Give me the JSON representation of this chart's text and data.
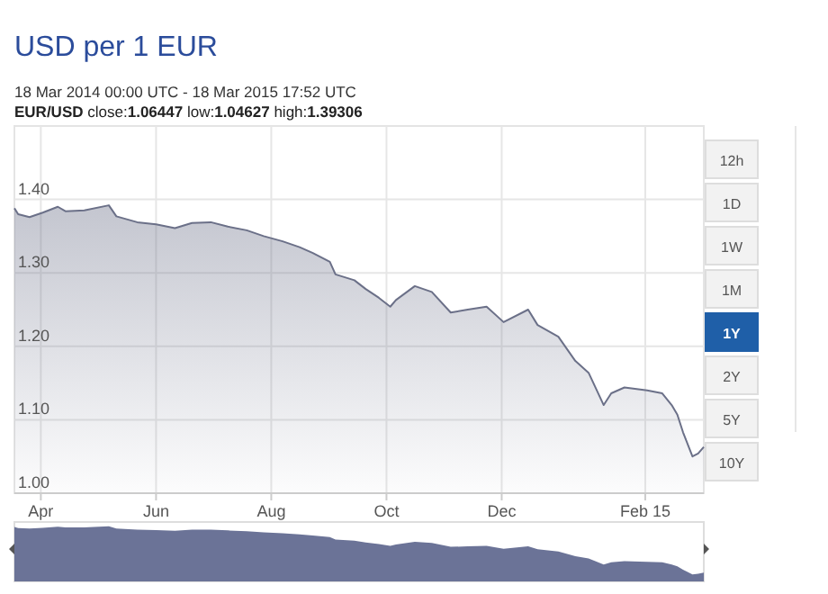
{
  "chart_data": {
    "type": "area",
    "title": "USD per 1 EUR",
    "subtitle": "18 Mar 2014 00:00 UTC - 18 Mar 2015 17:52 UTC",
    "annotations": [
      "EUR/USD close:1.06447 low:1.04627 high:1.39306",
      "12h",
      "1D",
      "1W",
      "1M",
      "1Y",
      "2Y",
      "5Y",
      "10Y"
    ],
    "x": [
      "2014-03-18",
      "2014-03-20",
      "2014-03-26",
      "2014-04-02",
      "2014-04-10",
      "2014-04-14",
      "2014-04-24",
      "2014-05-07",
      "2014-05-11",
      "2014-05-22",
      "2014-06-01",
      "2014-06-11",
      "2014-06-20",
      "2014-06-30",
      "2014-07-09",
      "2014-07-19",
      "2014-07-28",
      "2014-08-07",
      "2014-08-16",
      "2014-08-23",
      "2014-09-01",
      "2014-09-04",
      "2014-09-14",
      "2014-09-20",
      "2014-09-27",
      "2014-10-03",
      "2014-10-06",
      "2014-10-16",
      "2014-10-25",
      "2014-11-04",
      "2014-11-13",
      "2014-11-23",
      "2014-12-02",
      "2014-12-15",
      "2014-12-20",
      "2014-12-31",
      "2015-01-09",
      "2015-01-16",
      "2015-01-24",
      "2015-01-28",
      "2015-02-04",
      "2015-02-16",
      "2015-02-24",
      "2015-03-01",
      "2015-03-04",
      "2015-03-07",
      "2015-03-12",
      "2015-03-15",
      "2015-03-18"
    ],
    "series": [
      {
        "color": "#6b7088",
        "values": [
          1.388,
          1.38,
          1.376,
          1.382,
          1.39,
          1.384,
          1.385,
          1.392,
          1.377,
          1.369,
          1.366,
          1.361,
          1.368,
          1.369,
          1.363,
          1.358,
          1.35,
          1.343,
          1.335,
          1.327,
          1.315,
          1.298,
          1.29,
          1.278,
          1.266,
          1.254,
          1.263,
          1.282,
          1.274,
          1.246,
          1.25,
          1.254,
          1.233,
          1.25,
          1.229,
          1.213,
          1.18,
          1.164,
          1.12,
          1.136,
          1.144,
          1.14,
          1.136,
          1.12,
          1.107,
          1.083,
          1.05,
          1.054,
          1.063
        ]
      }
    ],
    "xlim": [
      "2014-03-18",
      "2015-03-18"
    ],
    "xticks": [
      {
        "value": "2014-04-01",
        "label": "Apr"
      },
      {
        "value": "2014-06-01",
        "label": "Jun"
      },
      {
        "value": "2014-08-01",
        "label": "Aug"
      },
      {
        "value": "2014-10-01",
        "label": "Oct"
      },
      {
        "value": "2014-12-01",
        "label": "Dec"
      },
      {
        "value": "2015-02-15",
        "label": "Feb 15"
      }
    ],
    "ylim": [
      1.0,
      1.5
    ],
    "yticks": [
      {
        "value": 1.0,
        "label": "1.00"
      },
      {
        "value": 1.1,
        "label": "1.10"
      },
      {
        "value": 1.2,
        "label": "1.20"
      },
      {
        "value": 1.3,
        "label": "1.30"
      },
      {
        "value": 1.4,
        "label": "1.40"
      }
    ],
    "grid": true
  }
}
